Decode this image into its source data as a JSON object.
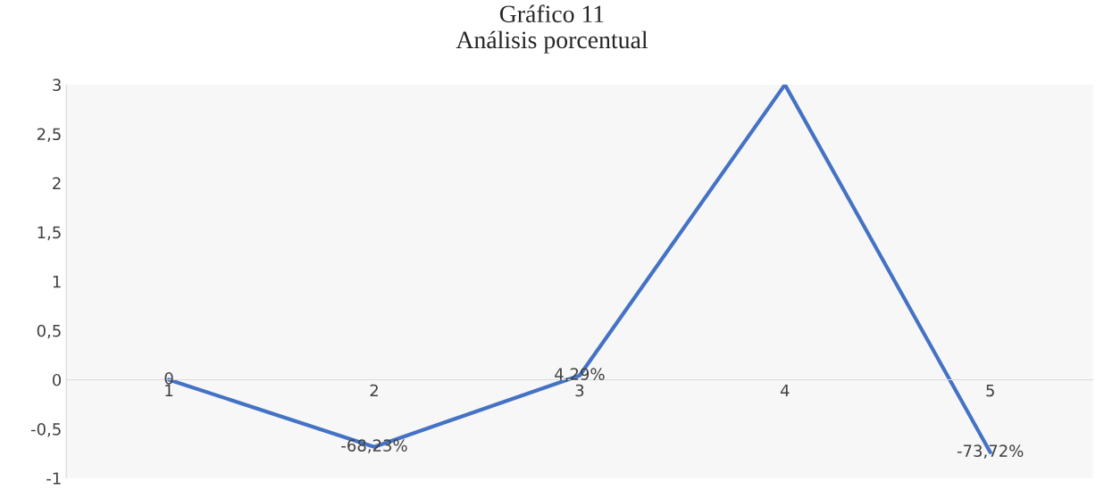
{
  "chart_data": {
    "type": "line",
    "title": "Gráfico 11\nAnálisis porcentual",
    "categories": [
      "1",
      "2",
      "3",
      "4",
      "5"
    ],
    "series": [
      {
        "color": "#4472c4",
        "values": [
          0,
          -0.6823,
          0.0429,
          3,
          -0.7372
        ],
        "value_labels": [
          "0",
          "-68,23%",
          "4,29%",
          null,
          "-73,72%"
        ]
      }
    ],
    "ylim": [
      -1,
      3
    ],
    "yticks": [
      {
        "value": -1,
        "label": "-1"
      },
      {
        "value": -0.5,
        "label": "-0,5"
      },
      {
        "value": 0,
        "label": "0"
      },
      {
        "value": 0.5,
        "label": "0,5"
      },
      {
        "value": 1,
        "label": "1"
      },
      {
        "value": 1.5,
        "label": "1,5"
      },
      {
        "value": 2,
        "label": "2"
      },
      {
        "value": 2.5,
        "label": "2,5"
      },
      {
        "value": 3,
        "label": "3"
      }
    ],
    "grid": false,
    "legend": false,
    "marker": "none",
    "line_style": "solid"
  }
}
